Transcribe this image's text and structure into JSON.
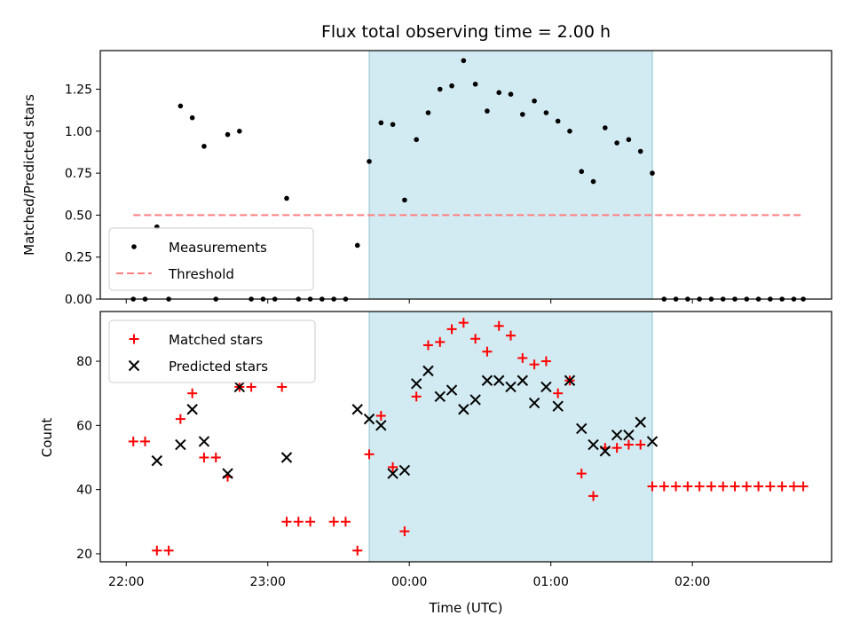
{
  "title": "Flux total observing time = 2.00 h",
  "xlabel": "Time (UTC)",
  "colors": {
    "measurements": "#000000",
    "threshold": "#ff7f7f",
    "matched": "#ff0000",
    "predicted": "#000000",
    "span": "#add8e6"
  },
  "chart_data": [
    {
      "type": "scatter",
      "ylabel": "Matched/Predicted stars",
      "ylim": [
        0,
        1.48
      ],
      "yticks": [
        0.0,
        0.25,
        0.5,
        0.75,
        1.0,
        1.25
      ],
      "ytick_labels": [
        "0.00",
        "0.25",
        "0.50",
        "0.75",
        "1.00",
        "1.25"
      ],
      "xlim": [
        "21:49",
        "02:59"
      ],
      "shaded_span": [
        "23:43",
        "01:43"
      ],
      "legend": {
        "placement": "lower-left",
        "entries": [
          "Measurements",
          "Threshold"
        ]
      },
      "threshold": {
        "name": "Threshold",
        "value": 0.5,
        "x_range": [
          "22:03",
          "02:47"
        ]
      },
      "series": [
        {
          "name": "Measurements",
          "points": [
            [
              "22:03",
              0.0
            ],
            [
              "22:08",
              0.0
            ],
            [
              "22:13",
              0.43
            ],
            [
              "22:18",
              0.0
            ],
            [
              "22:23",
              1.15
            ],
            [
              "22:28",
              1.08
            ],
            [
              "22:33",
              0.91
            ],
            [
              "22:38",
              0.0
            ],
            [
              "22:43",
              0.98
            ],
            [
              "22:48",
              1.0
            ],
            [
              "22:53",
              0.0
            ],
            [
              "22:58",
              0.0
            ],
            [
              "23:03",
              0.0
            ],
            [
              "23:08",
              0.6
            ],
            [
              "23:13",
              0.0
            ],
            [
              "23:18",
              0.0
            ],
            [
              "23:23",
              0.0
            ],
            [
              "23:28",
              0.0
            ],
            [
              "23:33",
              0.0
            ],
            [
              "23:38",
              0.32
            ],
            [
              "23:43",
              0.82
            ],
            [
              "23:48",
              1.05
            ],
            [
              "23:53",
              1.04
            ],
            [
              "23:58",
              0.59
            ],
            [
              "00:03",
              0.95
            ],
            [
              "00:08",
              1.11
            ],
            [
              "00:13",
              1.25
            ],
            [
              "00:18",
              1.27
            ],
            [
              "00:23",
              1.42
            ],
            [
              "00:28",
              1.28
            ],
            [
              "00:33",
              1.12
            ],
            [
              "00:38",
              1.23
            ],
            [
              "00:43",
              1.22
            ],
            [
              "00:48",
              1.1
            ],
            [
              "00:53",
              1.18
            ],
            [
              "00:58",
              1.11
            ],
            [
              "01:03",
              1.06
            ],
            [
              "01:08",
              1.0
            ],
            [
              "01:13",
              0.76
            ],
            [
              "01:18",
              0.7
            ],
            [
              "01:23",
              1.02
            ],
            [
              "01:28",
              0.93
            ],
            [
              "01:33",
              0.95
            ],
            [
              "01:38",
              0.88
            ],
            [
              "01:43",
              0.75
            ],
            [
              "01:48",
              0.0
            ],
            [
              "01:53",
              0.0
            ],
            [
              "01:58",
              0.0
            ],
            [
              "02:03",
              0.0
            ],
            [
              "02:08",
              0.0
            ],
            [
              "02:13",
              0.0
            ],
            [
              "02:18",
              0.0
            ],
            [
              "02:23",
              0.0
            ],
            [
              "02:28",
              0.0
            ],
            [
              "02:33",
              0.0
            ],
            [
              "02:38",
              0.0
            ],
            [
              "02:43",
              0.0
            ],
            [
              "02:47",
              0.0
            ]
          ]
        }
      ]
    },
    {
      "type": "scatter",
      "ylabel": "Count",
      "ylim": [
        17.5,
        95.5
      ],
      "yticks": [
        20,
        40,
        60,
        80
      ],
      "ytick_labels": [
        "20",
        "40",
        "60",
        "80"
      ],
      "xlim": [
        "21:49",
        "02:59"
      ],
      "xticks": [
        "22:00",
        "23:00",
        "00:00",
        "01:00",
        "02:00"
      ],
      "xtick_labels": [
        "22:00",
        "23:00",
        "00:00",
        "01:00",
        "02:00"
      ],
      "shaded_span": [
        "23:43",
        "01:43"
      ],
      "legend": {
        "placement": "upper-left",
        "entries": [
          "Matched stars",
          "Predicted stars"
        ]
      },
      "series": [
        {
          "name": "Matched stars",
          "marker": "plus",
          "points": [
            [
              "22:03",
              55
            ],
            [
              "22:08",
              55
            ],
            [
              "22:13",
              21
            ],
            [
              "22:18",
              21
            ],
            [
              "22:23",
              62
            ],
            [
              "22:28",
              70
            ],
            [
              "22:33",
              50
            ],
            [
              "22:38",
              50
            ],
            [
              "22:43",
              44
            ],
            [
              "22:48",
              72
            ],
            [
              "22:53",
              72
            ],
            [
              "23:06",
              72
            ],
            [
              "23:08",
              30
            ],
            [
              "23:13",
              30
            ],
            [
              "23:18",
              30
            ],
            [
              "23:28",
              30
            ],
            [
              "23:33",
              30
            ],
            [
              "23:38",
              21
            ],
            [
              "23:43",
              51
            ],
            [
              "23:48",
              63
            ],
            [
              "23:53",
              47
            ],
            [
              "23:58",
              27
            ],
            [
              "00:03",
              69
            ],
            [
              "00:08",
              85
            ],
            [
              "00:13",
              86
            ],
            [
              "00:18",
              90
            ],
            [
              "00:23",
              92
            ],
            [
              "00:28",
              87
            ],
            [
              "00:33",
              83
            ],
            [
              "00:38",
              91
            ],
            [
              "00:43",
              88
            ],
            [
              "00:48",
              81
            ],
            [
              "00:53",
              79
            ],
            [
              "00:58",
              80
            ],
            [
              "01:03",
              70
            ],
            [
              "01:08",
              74
            ],
            [
              "01:13",
              45
            ],
            [
              "01:18",
              38
            ],
            [
              "01:23",
              53
            ],
            [
              "01:28",
              53
            ],
            [
              "01:33",
              54
            ],
            [
              "01:38",
              54
            ],
            [
              "01:43",
              41
            ],
            [
              "01:48",
              41
            ],
            [
              "01:53",
              41
            ],
            [
              "01:58",
              41
            ],
            [
              "02:03",
              41
            ],
            [
              "02:08",
              41
            ],
            [
              "02:13",
              41
            ],
            [
              "02:18",
              41
            ],
            [
              "02:23",
              41
            ],
            [
              "02:28",
              41
            ],
            [
              "02:33",
              41
            ],
            [
              "02:38",
              41
            ],
            [
              "02:43",
              41
            ],
            [
              "02:47",
              41
            ]
          ]
        },
        {
          "name": "Predicted stars",
          "marker": "cross",
          "points": [
            [
              "22:13",
              49
            ],
            [
              "22:23",
              54
            ],
            [
              "22:28",
              65
            ],
            [
              "22:33",
              55
            ],
            [
              "22:43",
              45
            ],
            [
              "22:48",
              72
            ],
            [
              "23:08",
              50
            ],
            [
              "23:38",
              65
            ],
            [
              "23:43",
              62
            ],
            [
              "23:48",
              60
            ],
            [
              "23:53",
              45
            ],
            [
              "23:58",
              46
            ],
            [
              "00:03",
              73
            ],
            [
              "00:08",
              77
            ],
            [
              "00:13",
              69
            ],
            [
              "00:18",
              71
            ],
            [
              "00:23",
              65
            ],
            [
              "00:28",
              68
            ],
            [
              "00:33",
              74
            ],
            [
              "00:38",
              74
            ],
            [
              "00:43",
              72
            ],
            [
              "00:48",
              74
            ],
            [
              "00:53",
              67
            ],
            [
              "00:58",
              72
            ],
            [
              "01:03",
              66
            ],
            [
              "01:08",
              74
            ],
            [
              "01:13",
              59
            ],
            [
              "01:18",
              54
            ],
            [
              "01:23",
              52
            ],
            [
              "01:28",
              57
            ],
            [
              "01:33",
              57
            ],
            [
              "01:38",
              61
            ],
            [
              "01:43",
              55
            ]
          ]
        }
      ]
    }
  ]
}
